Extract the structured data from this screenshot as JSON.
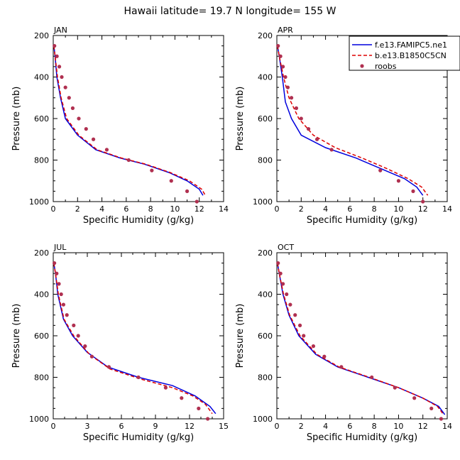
{
  "title": "Hawaii  latitude= 19.7 N longitude= 155 W",
  "legend": {
    "entries": [
      {
        "label": "f.e13.FAMIPC5.ne1",
        "color": "#0000dd",
        "style": "solid"
      },
      {
        "label": "b.e13.B1850C5CN",
        "color": "#dd0000",
        "style": "dashed"
      },
      {
        "label": "roobs",
        "color": "#b03050",
        "style": "dot"
      }
    ]
  },
  "chart_data": [
    {
      "type": "line",
      "panel": "JAN",
      "xlabel": "Specific Humidity (g/kg)",
      "ylabel": "Pressure (mb)",
      "xlim": [
        0,
        14
      ],
      "ylim": [
        1000,
        200
      ],
      "xticks": [
        "0",
        "2",
        "4",
        "6",
        "8",
        "10",
        "12",
        "14"
      ],
      "yticks": [
        "200",
        "400",
        "600",
        "800",
        "1000"
      ],
      "series": [
        {
          "name": "f.e13.FAMIPC5.ne1",
          "color": "#0000dd",
          "style": "solid",
          "points": [
            [
              0.05,
              250
            ],
            [
              0.15,
              300
            ],
            [
              0.3,
              400
            ],
            [
              0.6,
              500
            ],
            [
              1.0,
              600
            ],
            [
              2.0,
              680
            ],
            [
              3.5,
              750
            ],
            [
              5.5,
              790
            ],
            [
              7.5,
              820
            ],
            [
              9.5,
              860
            ],
            [
              11.0,
              900
            ],
            [
              12.0,
              940
            ],
            [
              12.3,
              970
            ]
          ]
        },
        {
          "name": "b.e13.B1850C5CN",
          "color": "#dd0000",
          "style": "dashed",
          "points": [
            [
              0.05,
              250
            ],
            [
              0.15,
              300
            ],
            [
              0.35,
              400
            ],
            [
              0.65,
              500
            ],
            [
              1.1,
              600
            ],
            [
              2.1,
              680
            ],
            [
              3.6,
              750
            ],
            [
              5.6,
              790
            ],
            [
              7.6,
              820
            ],
            [
              9.6,
              860
            ],
            [
              11.2,
              900
            ],
            [
              12.2,
              940
            ],
            [
              12.5,
              970
            ]
          ]
        },
        {
          "name": "roobs",
          "color": "#b03050",
          "style": "dot",
          "points": [
            [
              0.1,
              250
            ],
            [
              0.3,
              300
            ],
            [
              0.5,
              350
            ],
            [
              0.7,
              400
            ],
            [
              1.0,
              450
            ],
            [
              1.3,
              500
            ],
            [
              1.6,
              550
            ],
            [
              2.1,
              600
            ],
            [
              2.7,
              650
            ],
            [
              3.3,
              700
            ],
            [
              4.4,
              750
            ],
            [
              6.2,
              800
            ],
            [
              8.1,
              850
            ],
            [
              9.7,
              900
            ],
            [
              11.0,
              950
            ],
            [
              11.8,
              1000
            ]
          ]
        }
      ]
    },
    {
      "type": "line",
      "panel": "APR",
      "xlabel": "Specific Humidity (g/kg)",
      "ylabel": "Pressure (mb)",
      "xlim": [
        0,
        14
      ],
      "ylim": [
        1000,
        200
      ],
      "xticks": [
        "0",
        "2",
        "4",
        "6",
        "8",
        "10",
        "12",
        "14"
      ],
      "yticks": [
        "200",
        "400",
        "600",
        "800",
        "1000"
      ],
      "series": [
        {
          "name": "f.e13.FAMIPC5.ne1",
          "color": "#0000dd",
          "style": "solid",
          "points": [
            [
              0.05,
              250
            ],
            [
              0.2,
              300
            ],
            [
              0.45,
              400
            ],
            [
              0.7,
              520
            ],
            [
              1.2,
              600
            ],
            [
              2.0,
              680
            ],
            [
              4.0,
              740
            ],
            [
              6.5,
              790
            ],
            [
              8.5,
              840
            ],
            [
              10.5,
              890
            ],
            [
              11.5,
              930
            ],
            [
              12.0,
              970
            ]
          ]
        },
        {
          "name": "b.e13.B1850C5CN",
          "color": "#dd0000",
          "style": "dashed",
          "points": [
            [
              0.05,
              250
            ],
            [
              0.2,
              300
            ],
            [
              0.55,
              400
            ],
            [
              1.0,
              500
            ],
            [
              1.8,
              600
            ],
            [
              3.0,
              680
            ],
            [
              4.8,
              740
            ],
            [
              7.0,
              790
            ],
            [
              9.0,
              840
            ],
            [
              10.8,
              890
            ],
            [
              11.9,
              930
            ],
            [
              12.4,
              970
            ]
          ]
        },
        {
          "name": "roobs",
          "color": "#b03050",
          "style": "dot",
          "points": [
            [
              0.1,
              250
            ],
            [
              0.3,
              300
            ],
            [
              0.5,
              350
            ],
            [
              0.7,
              400
            ],
            [
              0.9,
              450
            ],
            [
              1.2,
              500
            ],
            [
              1.6,
              550
            ],
            [
              2.0,
              600
            ],
            [
              2.6,
              650
            ],
            [
              3.3,
              700
            ],
            [
              4.5,
              750
            ],
            [
              8.5,
              850
            ],
            [
              10.0,
              900
            ],
            [
              11.2,
              950
            ],
            [
              12.0,
              1000
            ]
          ]
        }
      ]
    },
    {
      "type": "line",
      "panel": "JUL",
      "xlabel": "Specific Humidity (g/kg)",
      "ylabel": "Pressure (mb)",
      "xlim": [
        0,
        15
      ],
      "ylim": [
        1000,
        200
      ],
      "xticks": [
        "0",
        "3",
        "6",
        "9",
        "12",
        "15"
      ],
      "yticks": [
        "200",
        "400",
        "600",
        "800",
        "1000"
      ],
      "series": [
        {
          "name": "f.e13.FAMIPC5.ne1",
          "color": "#0000dd",
          "style": "solid",
          "points": [
            [
              0.05,
              250
            ],
            [
              0.2,
              300
            ],
            [
              0.4,
              400
            ],
            [
              0.9,
              520
            ],
            [
              1.7,
              600
            ],
            [
              3.0,
              680
            ],
            [
              4.8,
              750
            ],
            [
              7.5,
              800
            ],
            [
              10.5,
              840
            ],
            [
              12.5,
              890
            ],
            [
              13.8,
              940
            ],
            [
              14.3,
              975
            ]
          ]
        },
        {
          "name": "b.e13.B1850C5CN",
          "color": "#dd0000",
          "style": "dashed",
          "points": [
            [
              0.05,
              250
            ],
            [
              0.2,
              300
            ],
            [
              0.45,
              400
            ],
            [
              0.95,
              520
            ],
            [
              1.8,
              600
            ],
            [
              3.2,
              690
            ],
            [
              5.0,
              760
            ],
            [
              7.8,
              810
            ],
            [
              10.5,
              850
            ],
            [
              12.3,
              890
            ],
            [
              13.4,
              930
            ],
            [
              14.0,
              975
            ]
          ]
        },
        {
          "name": "roobs",
          "color": "#b03050",
          "style": "dot",
          "points": [
            [
              0.1,
              250
            ],
            [
              0.3,
              300
            ],
            [
              0.5,
              350
            ],
            [
              0.7,
              400
            ],
            [
              0.9,
              450
            ],
            [
              1.2,
              500
            ],
            [
              1.8,
              550
            ],
            [
              2.2,
              600
            ],
            [
              2.8,
              650
            ],
            [
              3.4,
              700
            ],
            [
              4.9,
              750
            ],
            [
              7.5,
              800
            ],
            [
              9.9,
              850
            ],
            [
              11.3,
              900
            ],
            [
              12.8,
              950
            ],
            [
              13.6,
              1000
            ]
          ]
        }
      ]
    },
    {
      "type": "line",
      "panel": "OCT",
      "xlabel": "Specific Humidity (g/kg)",
      "ylabel": "Pressure (mb)",
      "xlim": [
        0,
        14
      ],
      "ylim": [
        1000,
        200
      ],
      "xticks": [
        "0",
        "2",
        "4",
        "6",
        "8",
        "10",
        "12",
        "14"
      ],
      "yticks": [
        "200",
        "400",
        "600",
        "800",
        "1000"
      ],
      "series": [
        {
          "name": "f.e13.FAMIPC5.ne1",
          "color": "#0000dd",
          "style": "solid",
          "points": [
            [
              0.05,
              250
            ],
            [
              0.2,
              300
            ],
            [
              0.5,
              400
            ],
            [
              1.0,
              500
            ],
            [
              1.8,
              600
            ],
            [
              3.2,
              690
            ],
            [
              5.0,
              750
            ],
            [
              7.5,
              800
            ],
            [
              10.0,
              850
            ],
            [
              12.0,
              900
            ],
            [
              13.3,
              940
            ],
            [
              13.8,
              980
            ]
          ]
        },
        {
          "name": "b.e13.B1850C5CN",
          "color": "#dd0000",
          "style": "dashed",
          "points": [
            [
              0.05,
              250
            ],
            [
              0.2,
              300
            ],
            [
              0.55,
              400
            ],
            [
              1.05,
              500
            ],
            [
              1.9,
              600
            ],
            [
              3.3,
              690
            ],
            [
              5.1,
              750
            ],
            [
              7.6,
              800
            ],
            [
              10.0,
              850
            ],
            [
              12.0,
              900
            ],
            [
              13.2,
              940
            ],
            [
              13.7,
              980
            ]
          ]
        },
        {
          "name": "roobs",
          "color": "#b03050",
          "style": "dot",
          "points": [
            [
              0.1,
              250
            ],
            [
              0.3,
              300
            ],
            [
              0.5,
              350
            ],
            [
              0.8,
              400
            ],
            [
              1.1,
              450
            ],
            [
              1.5,
              500
            ],
            [
              1.9,
              550
            ],
            [
              2.2,
              600
            ],
            [
              3.0,
              650
            ],
            [
              3.9,
              700
            ],
            [
              5.3,
              750
            ],
            [
              7.8,
              800
            ],
            [
              9.7,
              850
            ],
            [
              11.3,
              900
            ],
            [
              12.7,
              950
            ],
            [
              13.5,
              1000
            ]
          ]
        }
      ]
    }
  ]
}
